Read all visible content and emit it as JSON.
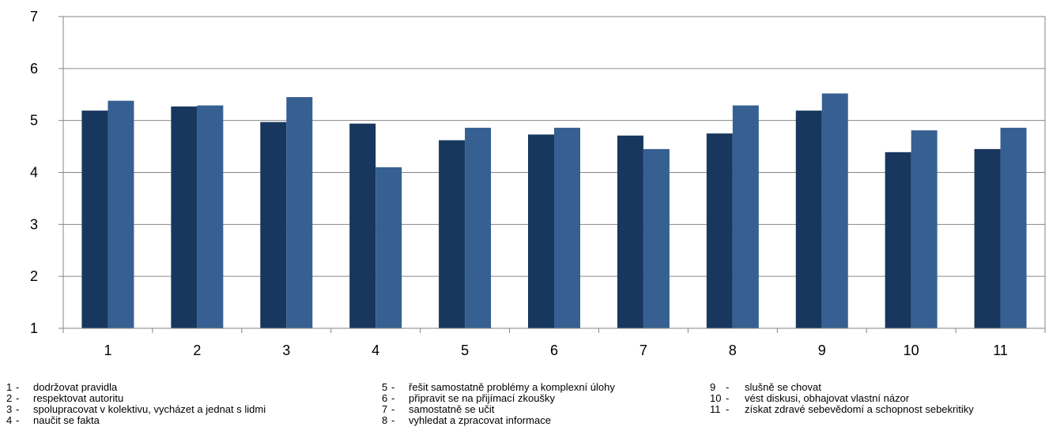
{
  "chart_data": {
    "type": "bar",
    "categories": [
      "1",
      "2",
      "3",
      "4",
      "5",
      "6",
      "7",
      "8",
      "9",
      "10",
      "11"
    ],
    "series": [
      {
        "values": [
          5.19,
          5.27,
          4.97,
          4.94,
          4.62,
          4.73,
          4.71,
          4.75,
          5.19,
          4.39,
          4.45
        ],
        "color": "#17375e"
      },
      {
        "values": [
          5.38,
          5.29,
          5.45,
          4.1,
          4.86,
          4.86,
          4.45,
          5.29,
          5.52,
          4.81,
          4.86
        ],
        "color": "#366092"
      }
    ],
    "yticks": [
      "1",
      "2",
      "3",
      "4",
      "5",
      "6",
      "7"
    ],
    "ylim": [
      1,
      7
    ],
    "grid": true,
    "legend_position": "bottom"
  },
  "legend_columns": [
    [
      {
        "num": "1",
        "sep": "-",
        "label": "dodržovat pravidla"
      },
      {
        "num": "2",
        "sep": "-",
        "label": "respektovat autoritu"
      },
      {
        "num": "3",
        "sep": "-",
        "label": "spolupracovat v kolektivu, vycházet a jednat s lidmi"
      },
      {
        "num": "4",
        "sep": "-",
        "label": "naučit se fakta"
      }
    ],
    [
      {
        "num": "5",
        "sep": "-",
        "label": "řešit samostatně problémy a komplexní úlohy"
      },
      {
        "num": "6",
        "sep": "-",
        "label": "připravit se na přijímací zkoušky"
      },
      {
        "num": "7",
        "sep": "-",
        "label": "samostatně se učit"
      },
      {
        "num": "8",
        "sep": "-",
        "label": "vyhledat a zpracovat informace"
      }
    ],
    [
      {
        "num": "9",
        "sep": "-",
        "label": "slušně se chovat"
      },
      {
        "num": "10",
        "sep": "-",
        "label": "vést diskusi, obhajovat vlastní názor"
      },
      {
        "num": "11",
        "sep": "-",
        "label": "získat zdravé sebevědomí a schopnost sebekritiky"
      }
    ]
  ]
}
